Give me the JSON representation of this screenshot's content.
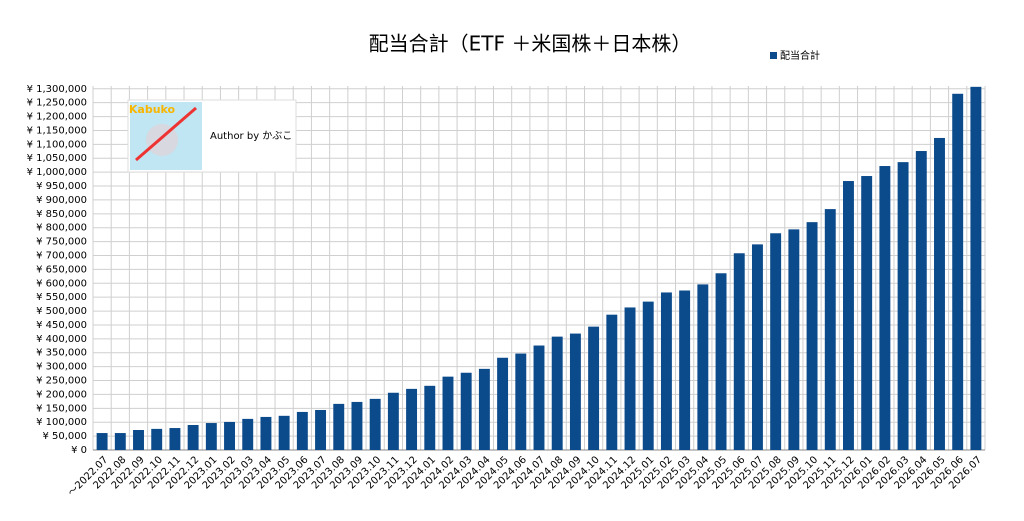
{
  "chart_data": {
    "type": "bar",
    "title": "配当合計（ETF ＋米国株＋日本株）",
    "categories": [
      "～2022.07",
      "2022.08",
      "2022.09",
      "2022.10",
      "2022.11",
      "2022.12",
      "2023.01",
      "2023.02",
      "2023.03",
      "2023.04",
      "2023.05",
      "2023.06",
      "2023.07",
      "2023.08",
      "2023.09",
      "2023.10",
      "2023.11",
      "2023.12",
      "2024.01",
      "2024.02",
      "2024.03",
      "2024.04",
      "2024.05",
      "2024.06",
      "2024.07",
      "2024.08",
      "2024.09",
      "2024.10",
      "2024.11",
      "2024.12",
      "2025.01",
      "2025.02",
      "2025.03",
      "2025.04",
      "2025.05",
      "2025.06",
      "2025.07",
      "2025.08",
      "2025.09",
      "2025.10",
      "2025.11",
      "2025.12",
      "2026.01",
      "2026.02",
      "2026.03",
      "2026.04",
      "2026.05",
      "2026.06",
      "2026.07"
    ],
    "series": [
      {
        "name": "配当合計",
        "color": "#0b4a8b",
        "values": [
          61000,
          61000,
          72000,
          76000,
          79000,
          90000,
          97000,
          101000,
          112000,
          119000,
          123000,
          137000,
          144000,
          166000,
          173000,
          184000,
          206000,
          220000,
          231000,
          264000,
          278000,
          292000,
          332000,
          347000,
          376000,
          408000,
          419000,
          444000,
          487000,
          513000,
          534000,
          567000,
          574000,
          596000,
          636000,
          708000,
          740000,
          780000,
          794000,
          820000,
          867000,
          968000,
          986000,
          1022000,
          1036000,
          1076000,
          1123000,
          1282000,
          1307000
        ]
      }
    ],
    "ylim": [
      0,
      1310000
    ],
    "yticks": [
      {
        "value": 0,
        "label": "¥ 0"
      },
      {
        "value": 50000,
        "label": "¥ 50,000"
      },
      {
        "value": 100000,
        "label": "¥ 100,000"
      },
      {
        "value": 150000,
        "label": "¥ 150,000"
      },
      {
        "value": 200000,
        "label": "¥ 200,000"
      },
      {
        "value": 250000,
        "label": "¥ 250,000"
      },
      {
        "value": 300000,
        "label": "¥ 300,000"
      },
      {
        "value": 350000,
        "label": "¥ 350,000"
      },
      {
        "value": 400000,
        "label": "¥ 400,000"
      },
      {
        "value": 450000,
        "label": "¥ 450,000"
      },
      {
        "value": 500000,
        "label": "¥ 500,000"
      },
      {
        "value": 550000,
        "label": "¥ 550,000"
      },
      {
        "value": 600000,
        "label": "¥ 600,000"
      },
      {
        "value": 650000,
        "label": "¥ 650,000"
      },
      {
        "value": 700000,
        "label": "¥ 700,000"
      },
      {
        "value": 750000,
        "label": "¥ 750,000"
      },
      {
        "value": 800000,
        "label": "¥ 800,000"
      },
      {
        "value": 850000,
        "label": "¥ 850,000"
      },
      {
        "value": 900000,
        "label": "¥ 900,000"
      },
      {
        "value": 950000,
        "label": "¥ 950,000"
      },
      {
        "value": 1000000,
        "label": "¥ 1,000,000"
      },
      {
        "value": 1050000,
        "label": "¥ 1,050,000"
      },
      {
        "value": 1100000,
        "label": "¥ 1,100,000"
      },
      {
        "value": 1150000,
        "label": "¥ 1,150,000"
      },
      {
        "value": 1200000,
        "label": "¥ 1,200,000"
      },
      {
        "value": 1250000,
        "label": "¥ 1,250,000"
      },
      {
        "value": 1300000,
        "label": "¥ 1,300,000"
      }
    ],
    "grid": true,
    "legend": "top-right"
  },
  "author_badge": {
    "logo_text": "Kabuko",
    "caption": "Author by かぶこ"
  }
}
